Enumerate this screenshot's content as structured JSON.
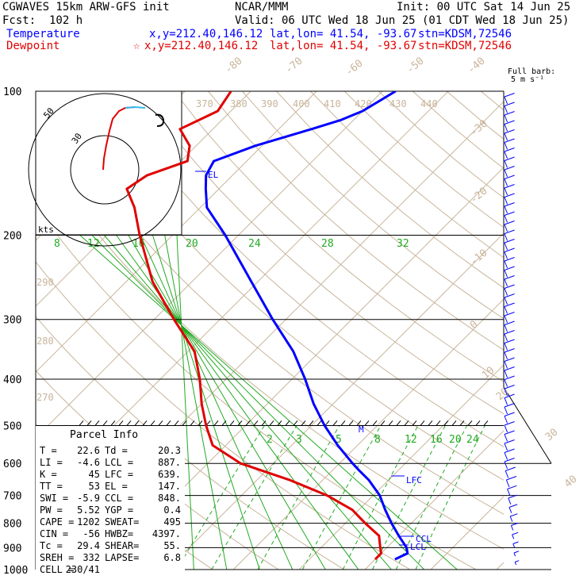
{
  "header": {
    "model": "CGWAVES 15km ARW-GFS init",
    "org": "NCAR/MMM",
    "init": "Init: 00 UTC Sat 14 Jun 25",
    "fcst": "Fcst:  102 h",
    "valid": "Valid: 06 UTC Wed 18 Jun 25 (01 CDT Wed 18 Jun 25)"
  },
  "legend": {
    "temperature": {
      "label": "Temperature",
      "loc": "x,y=212.40,146.12",
      "latlon": "lat,lon= 41.54, -93.67",
      "stn": "stn=KDSM,72546",
      "color": "#0000ff"
    },
    "dewpoint": {
      "label": "Dewpoint",
      "loc": "x,y=212.40,146.12",
      "latlon": "lat,lon= 41.54, -93.67",
      "stn": "stn=KDSM,72546",
      "color": "#e00000",
      "marker": "☆"
    }
  },
  "barb_note": {
    "line1": "Full barb:",
    "line2": "5 m s⁻¹"
  },
  "hodograph": {
    "rings": [
      "50",
      "30"
    ],
    "units": "kts"
  },
  "pressure_labels": [
    "100",
    "200",
    "300",
    "400",
    "500",
    "600",
    "700",
    "800",
    "900",
    "1000"
  ],
  "temp_labels": [
    "-80",
    "-70",
    "-60",
    "-50",
    "-40",
    "-30",
    "-20",
    "-10",
    "0",
    "10",
    "20",
    "30",
    "40"
  ],
  "theta_labels": [
    "370",
    "380",
    "390",
    "400",
    "410",
    "420",
    "430",
    "440",
    "290",
    "280",
    "270"
  ],
  "mixing_labels_top": [
    "8",
    "12",
    "16",
    "20",
    "24",
    "28",
    "32"
  ],
  "mixing_labels_low": [
    "2",
    "3",
    "5",
    "8",
    "12",
    "16",
    "20",
    "24"
  ],
  "level_markers": [
    "EL",
    "LFC",
    "CCL",
    "LCL",
    "M"
  ],
  "parcel_info": {
    "title": "Parcel Info",
    "rows": [
      [
        "T  =",
        "22.6",
        "Td =",
        "20.3"
      ],
      [
        "LI =",
        "-4.6",
        "LCL =",
        "887."
      ],
      [
        "K  =",
        "45",
        "LFC =",
        "639."
      ],
      [
        "TT =",
        "53",
        "EL  =",
        "147."
      ],
      [
        "SWI =",
        "-5.9",
        "CCL =",
        "848."
      ],
      [
        "PW =",
        "5.52",
        "YGP =",
        "0.4"
      ],
      [
        "CAPE =",
        "1202",
        "SWEAT=",
        "495"
      ],
      [
        "CIN =",
        "-56",
        "HWBZ=",
        "4397."
      ],
      [
        "Tc =",
        "29.4",
        "SHEAR=",
        "55."
      ],
      [
        "SREH =",
        "332",
        "LAPSE=",
        "6.8"
      ],
      [
        "CELL =",
        "230/41",
        "",
        ""
      ]
    ]
  },
  "chart_data": {
    "type": "line",
    "title": "",
    "xlabel": "",
    "ylabel": "",
    "y_axis": "pressure (hPa), log scale",
    "ylim": [
      1000,
      100
    ],
    "series": [
      {
        "name": "Temperature",
        "color": "#0000ff",
        "points": [
          [
            952,
            23
          ],
          [
            925,
            24
          ],
          [
            900,
            23
          ],
          [
            850,
            20
          ],
          [
            800,
            17
          ],
          [
            750,
            14
          ],
          [
            700,
            11
          ],
          [
            650,
            7
          ],
          [
            620,
            4
          ],
          [
            600,
            2
          ],
          [
            550,
            -3
          ],
          [
            500,
            -8
          ],
          [
            450,
            -13
          ],
          [
            400,
            -18
          ],
          [
            350,
            -24
          ],
          [
            300,
            -32
          ],
          [
            250,
            -41
          ],
          [
            200,
            -52
          ],
          [
            175,
            -59
          ],
          [
            160,
            -62
          ],
          [
            150,
            -64
          ],
          [
            140,
            -65
          ],
          [
            130,
            -61
          ],
          [
            120,
            -55
          ],
          [
            115,
            -52
          ],
          [
            110,
            -50
          ],
          [
            100,
            -48
          ]
        ]
      },
      {
        "name": "Dewpoint",
        "color": "#e00000",
        "points": [
          [
            952,
            20
          ],
          [
            925,
            20
          ],
          [
            900,
            19
          ],
          [
            850,
            17
          ],
          [
            800,
            13
          ],
          [
            750,
            9
          ],
          [
            700,
            3
          ],
          [
            650,
            -5
          ],
          [
            600,
            -15
          ],
          [
            550,
            -22
          ],
          [
            500,
            -26
          ],
          [
            450,
            -30
          ],
          [
            400,
            -34
          ],
          [
            350,
            -39
          ],
          [
            300,
            -47
          ],
          [
            250,
            -56
          ],
          [
            200,
            -65
          ],
          [
            175,
            -70
          ],
          [
            160,
            -74
          ],
          [
            150,
            -73
          ],
          [
            140,
            -69
          ],
          [
            130,
            -71
          ],
          [
            120,
            -75
          ],
          [
            110,
            -72
          ],
          [
            100,
            -73
          ]
        ]
      }
    ]
  }
}
